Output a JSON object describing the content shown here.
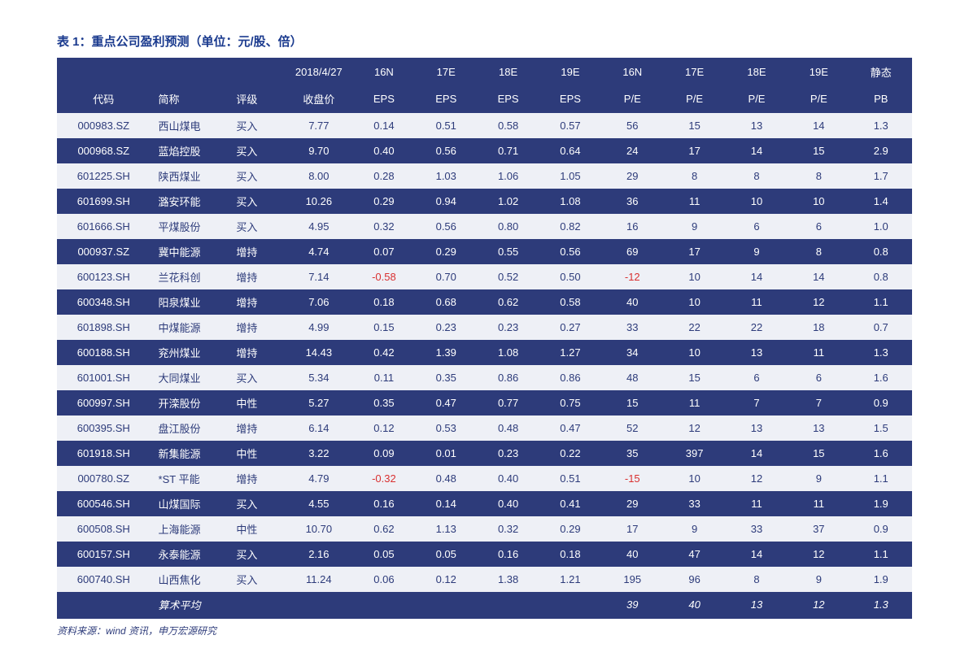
{
  "title": "表 1：重点公司盈利预测（单位：元/股、倍）",
  "source": "资料来源：wind 资讯，申万宏源研究",
  "colors": {
    "header_bg": "#2d3b7a",
    "header_text": "#ffffff",
    "row_light_bg": "#eef0f6",
    "row_light_text": "#2d3b7a",
    "row_dark_bg": "#2d3b7a",
    "row_dark_text": "#ffffff",
    "negative": "#d93030",
    "title_color": "#1a3a8e",
    "page_bg": "#ffffff"
  },
  "typography": {
    "title_fontsize_pt": 15,
    "cell_fontsize_pt": 13,
    "source_fontsize_pt": 12,
    "font_family": "Microsoft YaHei / SimSun"
  },
  "header": {
    "row1": [
      "",
      "",
      "",
      "2018/4/27",
      "16N",
      "17E",
      "18E",
      "19E",
      "16N",
      "17E",
      "18E",
      "19E",
      "静态"
    ],
    "row2": [
      "代码",
      "简称",
      "评级",
      "收盘价",
      "EPS",
      "EPS",
      "EPS",
      "EPS",
      "P/E",
      "P/E",
      "P/E",
      "P/E",
      "PB"
    ]
  },
  "rows": [
    {
      "code": "000983.SZ",
      "name": "西山煤电",
      "rating": "买入",
      "close": "7.77",
      "eps16": "0.14",
      "eps17": "0.51",
      "eps18": "0.58",
      "eps19": "0.57",
      "pe16": "56",
      "pe17": "15",
      "pe18": "13",
      "pe19": "14",
      "pb": "1.3"
    },
    {
      "code": "000968.SZ",
      "name": "蓝焰控股",
      "rating": "买入",
      "close": "9.70",
      "eps16": "0.40",
      "eps17": "0.56",
      "eps18": "0.71",
      "eps19": "0.64",
      "pe16": "24",
      "pe17": "17",
      "pe18": "14",
      "pe19": "15",
      "pb": "2.9"
    },
    {
      "code": "601225.SH",
      "name": "陕西煤业",
      "rating": "买入",
      "close": "8.00",
      "eps16": "0.28",
      "eps17": "1.03",
      "eps18": "1.06",
      "eps19": "1.05",
      "pe16": "29",
      "pe17": "8",
      "pe18": "8",
      "pe19": "8",
      "pb": "1.7"
    },
    {
      "code": "601699.SH",
      "name": "潞安环能",
      "rating": "买入",
      "close": "10.26",
      "eps16": "0.29",
      "eps17": "0.94",
      "eps18": "1.02",
      "eps19": "1.08",
      "pe16": "36",
      "pe17": "11",
      "pe18": "10",
      "pe19": "10",
      "pb": "1.4"
    },
    {
      "code": "601666.SH",
      "name": "平煤股份",
      "rating": "买入",
      "close": "4.95",
      "eps16": "0.32",
      "eps17": "0.56",
      "eps18": "0.80",
      "eps19": "0.82",
      "pe16": "16",
      "pe17": "9",
      "pe18": "6",
      "pe19": "6",
      "pb": "1.0"
    },
    {
      "code": "000937.SZ",
      "name": "冀中能源",
      "rating": "增持",
      "close": "4.74",
      "eps16": "0.07",
      "eps17": "0.29",
      "eps18": "0.55",
      "eps19": "0.56",
      "pe16": "69",
      "pe17": "17",
      "pe18": "9",
      "pe19": "8",
      "pb": "0.8"
    },
    {
      "code": "600123.SH",
      "name": "兰花科创",
      "rating": "增持",
      "close": "7.14",
      "eps16": "-0.58",
      "eps17": "0.70",
      "eps18": "0.52",
      "eps19": "0.50",
      "pe16": "-12",
      "pe17": "10",
      "pe18": "14",
      "pe19": "14",
      "pb": "0.8"
    },
    {
      "code": "600348.SH",
      "name": "阳泉煤业",
      "rating": "增持",
      "close": "7.06",
      "eps16": "0.18",
      "eps17": "0.68",
      "eps18": "0.62",
      "eps19": "0.58",
      "pe16": "40",
      "pe17": "10",
      "pe18": "11",
      "pe19": "12",
      "pb": "1.1"
    },
    {
      "code": "601898.SH",
      "name": "中煤能源",
      "rating": "增持",
      "close": "4.99",
      "eps16": "0.15",
      "eps17": "0.23",
      "eps18": "0.23",
      "eps19": "0.27",
      "pe16": "33",
      "pe17": "22",
      "pe18": "22",
      "pe19": "18",
      "pb": "0.7"
    },
    {
      "code": "600188.SH",
      "name": "兖州煤业",
      "rating": "增持",
      "close": "14.43",
      "eps16": "0.42",
      "eps17": "1.39",
      "eps18": "1.08",
      "eps19": "1.27",
      "pe16": "34",
      "pe17": "10",
      "pe18": "13",
      "pe19": "11",
      "pb": "1.3"
    },
    {
      "code": "601001.SH",
      "name": "大同煤业",
      "rating": "买入",
      "close": "5.34",
      "eps16": "0.11",
      "eps17": "0.35",
      "eps18": "0.86",
      "eps19": "0.86",
      "pe16": "48",
      "pe17": "15",
      "pe18": "6",
      "pe19": "6",
      "pb": "1.6"
    },
    {
      "code": "600997.SH",
      "name": "开滦股份",
      "rating": "中性",
      "close": "5.27",
      "eps16": "0.35",
      "eps17": "0.47",
      "eps18": "0.77",
      "eps19": "0.75",
      "pe16": "15",
      "pe17": "11",
      "pe18": "7",
      "pe19": "7",
      "pb": "0.9"
    },
    {
      "code": "600395.SH",
      "name": "盘江股份",
      "rating": "增持",
      "close": "6.14",
      "eps16": "0.12",
      "eps17": "0.53",
      "eps18": "0.48",
      "eps19": "0.47",
      "pe16": "52",
      "pe17": "12",
      "pe18": "13",
      "pe19": "13",
      "pb": "1.5"
    },
    {
      "code": "601918.SH",
      "name": "新集能源",
      "rating": "中性",
      "close": "3.22",
      "eps16": "0.09",
      "eps17": "0.01",
      "eps18": "0.23",
      "eps19": "0.22",
      "pe16": "35",
      "pe17": "397",
      "pe18": "14",
      "pe19": "15",
      "pb": "1.6"
    },
    {
      "code": "000780.SZ",
      "name": "*ST 平能",
      "rating": "增持",
      "close": "4.79",
      "eps16": "-0.32",
      "eps17": "0.48",
      "eps18": "0.40",
      "eps19": "0.51",
      "pe16": "-15",
      "pe17": "10",
      "pe18": "12",
      "pe19": "9",
      "pb": "1.1"
    },
    {
      "code": "600546.SH",
      "name": "山煤国际",
      "rating": "买入",
      "close": "4.55",
      "eps16": "0.16",
      "eps17": "0.14",
      "eps18": "0.40",
      "eps19": "0.41",
      "pe16": "29",
      "pe17": "33",
      "pe18": "11",
      "pe19": "11",
      "pb": "1.9"
    },
    {
      "code": "600508.SH",
      "name": "上海能源",
      "rating": "中性",
      "close": "10.70",
      "eps16": "0.62",
      "eps17": "1.13",
      "eps18": "0.32",
      "eps19": "0.29",
      "pe16": "17",
      "pe17": "9",
      "pe18": "33",
      "pe19": "37",
      "pb": "0.9"
    },
    {
      "code": "600157.SH",
      "name": "永泰能源",
      "rating": "买入",
      "close": "2.16",
      "eps16": "0.05",
      "eps17": "0.05",
      "eps18": "0.16",
      "eps19": "0.18",
      "pe16": "40",
      "pe17": "47",
      "pe18": "14",
      "pe19": "12",
      "pb": "1.1"
    },
    {
      "code": "600740.SH",
      "name": "山西焦化",
      "rating": "买入",
      "close": "11.24",
      "eps16": "0.06",
      "eps17": "0.12",
      "eps18": "1.38",
      "eps19": "1.21",
      "pe16": "195",
      "pe17": "96",
      "pe18": "8",
      "pe19": "9",
      "pb": "1.9"
    }
  ],
  "avg": {
    "label": "算术平均",
    "pe16": "39",
    "pe17": "40",
    "pe18": "13",
    "pe19": "12",
    "pb": "1.3"
  }
}
